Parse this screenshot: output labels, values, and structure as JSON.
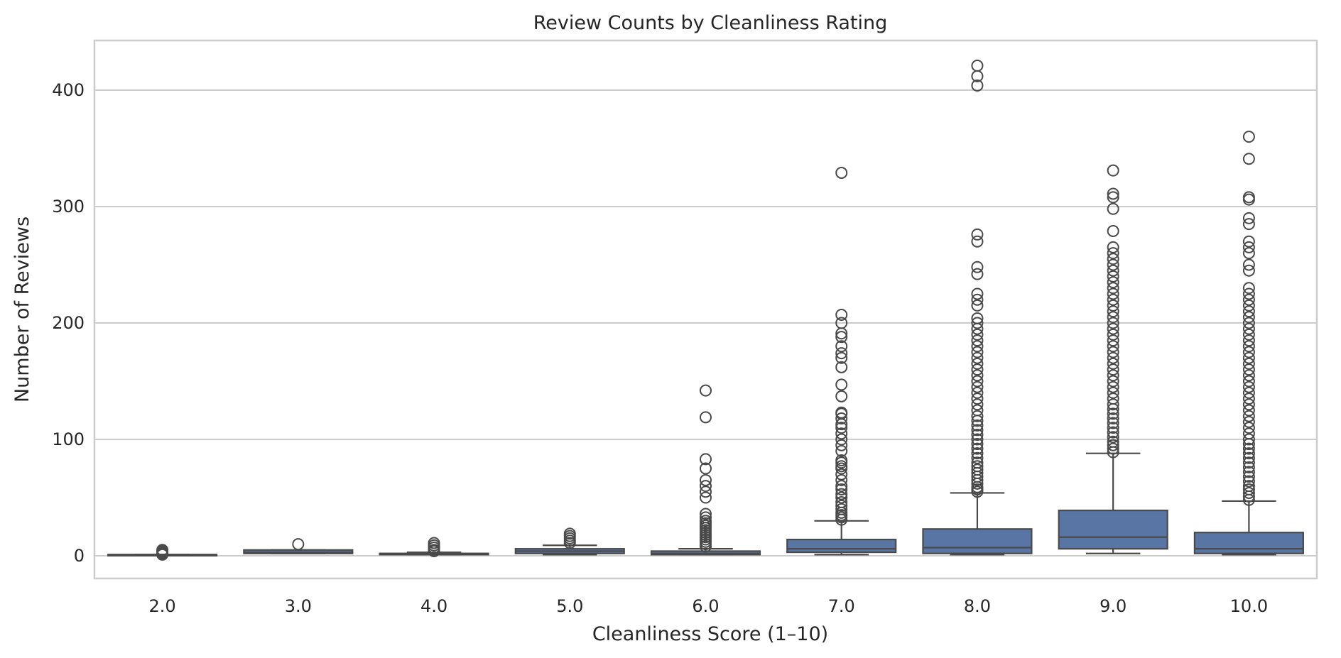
{
  "chart_data": {
    "type": "box",
    "title": "Review Counts by Cleanliness Rating",
    "xlabel": "Cleanliness Score (1–10)",
    "ylabel": "Number of Reviews",
    "ylim": [
      -20,
      443
    ],
    "yticks": [
      0,
      100,
      200,
      300,
      400
    ],
    "grid": true,
    "box_color": "#5975a4",
    "edge_color": "#4a4a4a",
    "categories": [
      "2.0",
      "3.0",
      "4.0",
      "5.0",
      "6.0",
      "7.0",
      "8.0",
      "9.0",
      "10.0"
    ],
    "boxes": [
      {
        "category": "2.0",
        "whislo": 1,
        "q1": 1,
        "med": 1,
        "q3": 1,
        "whishi": 1,
        "fliers": [
          1,
          2,
          3,
          4,
          5
        ]
      },
      {
        "category": "3.0",
        "whislo": 2,
        "q1": 2,
        "med": 3,
        "q3": 5,
        "whishi": 5,
        "fliers": [
          10
        ]
      },
      {
        "category": "4.0",
        "whislo": 1,
        "q1": 1,
        "med": 2,
        "q3": 2,
        "whishi": 3,
        "fliers": [
          4,
          5,
          7,
          9,
          11
        ]
      },
      {
        "category": "5.0",
        "whislo": 1,
        "q1": 2,
        "med": 4,
        "q3": 6,
        "whishi": 9,
        "fliers": [
          11,
          13,
          15,
          17,
          19
        ]
      },
      {
        "category": "6.0",
        "whislo": 1,
        "q1": 1,
        "med": 2,
        "q3": 4,
        "whishi": 6,
        "fliers": [
          8,
          10,
          12,
          14,
          16,
          18,
          20,
          22,
          24,
          26,
          28,
          30,
          33,
          36,
          50,
          55,
          60,
          65,
          75,
          83,
          119,
          142
        ]
      },
      {
        "category": "7.0",
        "whislo": 1,
        "q1": 3,
        "med": 6,
        "q3": 14,
        "whishi": 30,
        "fliers": [
          31,
          33,
          35,
          37,
          40,
          43,
          46,
          50,
          53,
          57,
          60,
          65,
          70,
          75,
          77,
          80,
          82,
          90,
          95,
          100,
          105,
          110,
          113,
          118,
          122,
          123,
          137,
          147,
          162,
          170,
          174,
          180,
          188,
          191,
          200,
          207,
          329
        ]
      },
      {
        "category": "8.0",
        "whislo": 1,
        "q1": 2,
        "med": 7,
        "q3": 23,
        "whishi": 54,
        "fliers": [
          55,
          57,
          59,
          62,
          65,
          68,
          71,
          74,
          77,
          80,
          84,
          88,
          92,
          96,
          100,
          104,
          108,
          112,
          116,
          120,
          125,
          130,
          135,
          140,
          145,
          150,
          155,
          160,
          165,
          170,
          175,
          180,
          185,
          190,
          195,
          200,
          204,
          215,
          220,
          225,
          242,
          248,
          270,
          276,
          404,
          412,
          421
        ]
      },
      {
        "category": "9.0",
        "whislo": 2,
        "q1": 6,
        "med": 16,
        "q3": 39,
        "whishi": 88,
        "fliers": [
          89,
          92,
          95,
          98,
          102,
          106,
          110,
          114,
          118,
          122,
          126,
          130,
          135,
          140,
          145,
          150,
          155,
          160,
          165,
          170,
          175,
          180,
          185,
          190,
          195,
          200,
          205,
          210,
          215,
          220,
          225,
          230,
          235,
          240,
          245,
          250,
          255,
          260,
          265,
          279,
          298,
          308,
          311,
          331
        ]
      },
      {
        "category": "10.0",
        "whislo": 1,
        "q1": 2,
        "med": 6,
        "q3": 20,
        "whishi": 47,
        "fliers": [
          48,
          51,
          54,
          57,
          60,
          64,
          68,
          72,
          76,
          80,
          84,
          88,
          92,
          96,
          100,
          105,
          110,
          115,
          120,
          125,
          130,
          135,
          140,
          145,
          150,
          155,
          160,
          165,
          170,
          175,
          180,
          185,
          190,
          195,
          200,
          205,
          210,
          215,
          220,
          225,
          230,
          245,
          250,
          260,
          265,
          270,
          285,
          290,
          306,
          308,
          341,
          360
        ]
      }
    ]
  }
}
